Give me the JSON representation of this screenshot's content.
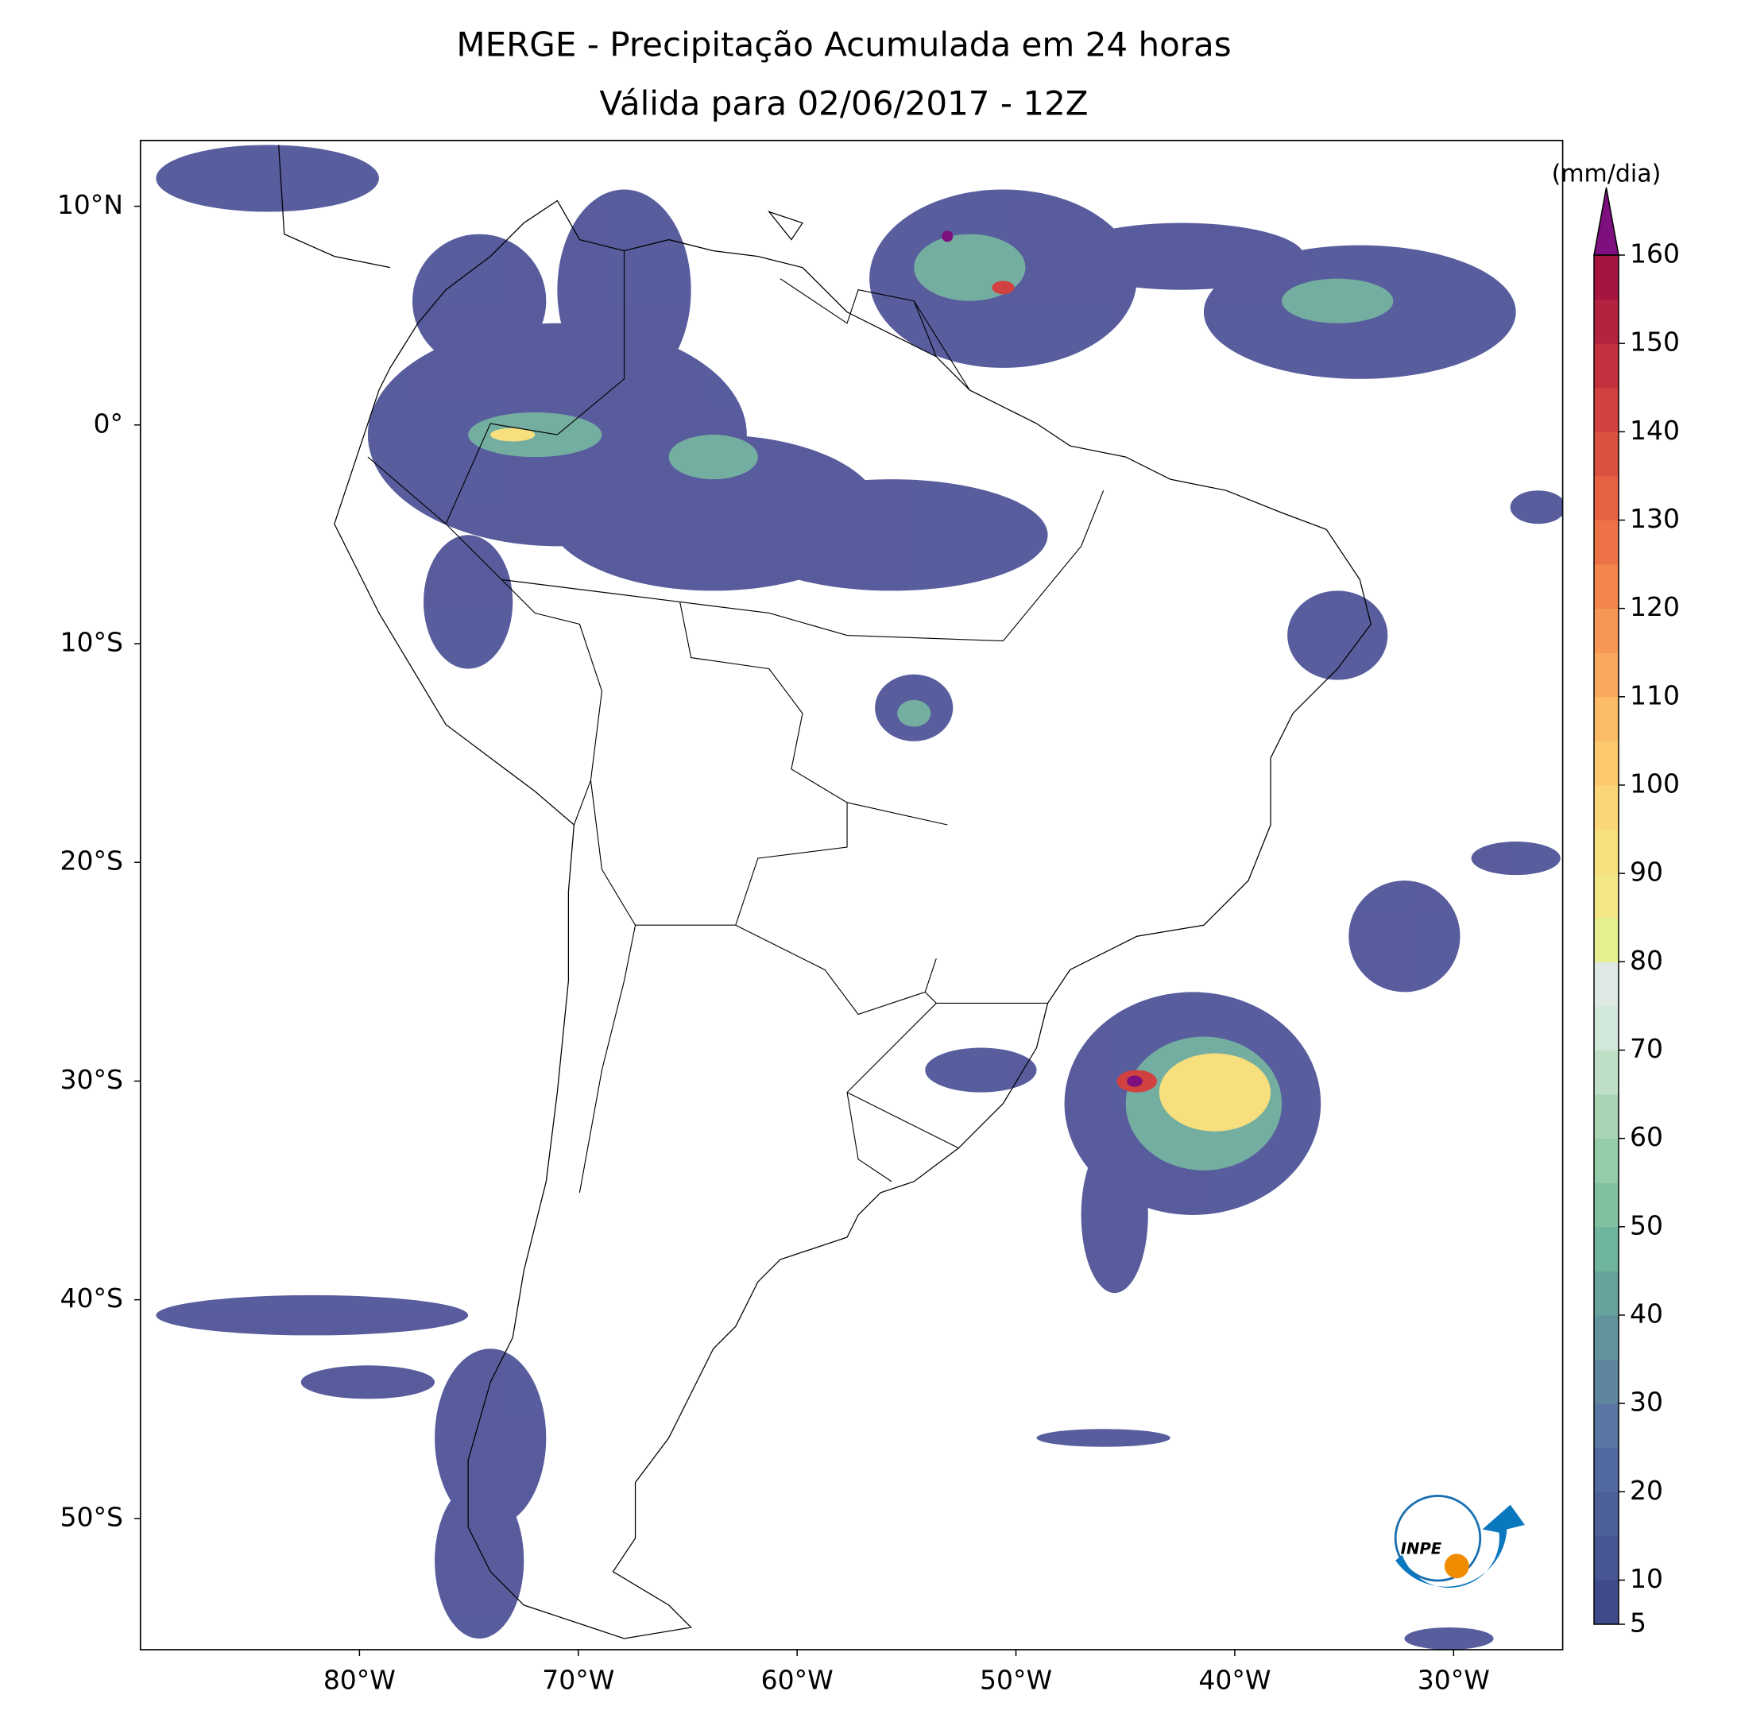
{
  "chart_data": {
    "type": "map",
    "title": "MERGE - Precipitação Acumulada em 24 horas",
    "subtitle": "Válida para 02/06/2017 - 12Z",
    "xlim": [
      -90,
      -25
    ],
    "ylim": [
      -56,
      13
    ],
    "xticks": [
      {
        "value": -80,
        "label": "80°W"
      },
      {
        "value": -70,
        "label": "70°W"
      },
      {
        "value": -60,
        "label": "60°W"
      },
      {
        "value": -50,
        "label": "50°W"
      },
      {
        "value": -40,
        "label": "40°W"
      },
      {
        "value": -30,
        "label": "30°W"
      }
    ],
    "yticks": [
      {
        "value": 10,
        "label": "10°N"
      },
      {
        "value": 0,
        "label": "0°"
      },
      {
        "value": -10,
        "label": "10°S"
      },
      {
        "value": -20,
        "label": "20°S"
      },
      {
        "value": -30,
        "label": "30°S"
      },
      {
        "value": -40,
        "label": "40°S"
      },
      {
        "value": -50,
        "label": "50°S"
      }
    ],
    "colorbar": {
      "label": "(mm/dia)",
      "lim": [
        5,
        160
      ],
      "ticks": [
        5,
        10,
        20,
        30,
        40,
        50,
        60,
        70,
        80,
        90,
        100,
        110,
        120,
        130,
        140,
        150,
        160
      ],
      "colors": [
        "#3f4a8a",
        "#475592",
        "#4d5f99",
        "#52699f",
        "#5a76a2",
        "#5f859f",
        "#62949d",
        "#68a39b",
        "#6fb49c",
        "#80c2a0",
        "#93cca8",
        "#a8d4b4",
        "#bedfc6",
        "#d1e7d9",
        "#dde9e2",
        "#e6ef8f",
        "#f2e685",
        "#f7df7e",
        "#fbd677",
        "#fcc96d",
        "#fcbb66",
        "#f9a95e",
        "#f69756",
        "#f3864d",
        "#ed7347",
        "#e66243",
        "#dd5140",
        "#d1413f",
        "#c3313f",
        "#b4223f",
        "#a5153f"
      ],
      "extend_color": "#7d0f7f"
    }
  },
  "logo": "INPE"
}
